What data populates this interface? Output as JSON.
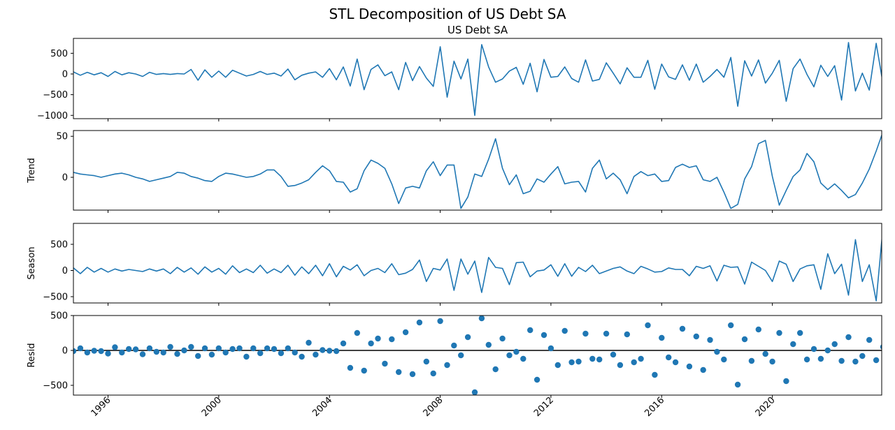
{
  "figure": {
    "suptitle": "STL Decomposition of US Debt SA"
  },
  "chart_data": [
    {
      "type": "line",
      "title": "US Debt SA",
      "ylabel": "",
      "xlabel": "",
      "xlim": [
        1994.75,
        2023.95
      ],
      "ylim": [
        -1080,
        860
      ],
      "yticks": [
        -1000,
        -500,
        0,
        500
      ],
      "color": "#1f77b4",
      "x_start": 1994.75,
      "x_step": 0.25,
      "values": [
        50,
        -30,
        40,
        -20,
        30,
        -60,
        60,
        -20,
        30,
        0,
        -60,
        40,
        -10,
        10,
        -10,
        10,
        0,
        110,
        -150,
        100,
        -80,
        70,
        -80,
        90,
        20,
        -50,
        -10,
        60,
        -10,
        20,
        -50,
        120,
        -140,
        -30,
        20,
        50,
        -80,
        130,
        -140,
        170,
        -290,
        360,
        -380,
        110,
        220,
        -40,
        50,
        -380,
        280,
        -160,
        180,
        -100,
        -300,
        660,
        -560,
        310,
        -120,
        360,
        -1000,
        710,
        170,
        -200,
        -120,
        70,
        160,
        -250,
        260,
        -430,
        350,
        -80,
        -60,
        170,
        -110,
        -200,
        340,
        -170,
        -130,
        270,
        20,
        -240,
        150,
        -80,
        -80,
        330,
        -370,
        240,
        -70,
        -130,
        220,
        -150,
        240,
        -200,
        -60,
        110,
        -80,
        400,
        -780,
        320,
        -50,
        340,
        -220,
        20,
        330,
        -660,
        130,
        360,
        -10,
        -310,
        210,
        -60,
        200,
        -630,
        760,
        -410,
        20,
        -390,
        740,
        -250
      ]
    },
    {
      "type": "line",
      "title": "",
      "ylabel": "Trend",
      "xlabel": "",
      "xlim": [
        1994.75,
        2023.95
      ],
      "ylim": [
        -40,
        57
      ],
      "yticks": [
        0,
        50
      ],
      "color": "#1f77b4",
      "x_start": 1994.75,
      "x_step": 0.25,
      "values": [
        6,
        4,
        3,
        2,
        0,
        2,
        4,
        5,
        3,
        0,
        -2,
        -5,
        -3,
        -1,
        1,
        6,
        5,
        1,
        -1,
        -4,
        -5,
        1,
        5,
        4,
        2,
        0,
        1,
        4,
        9,
        9,
        1,
        -11,
        -10,
        -7,
        -3,
        6,
        14,
        8,
        -5,
        -6,
        -18,
        -14,
        8,
        21,
        17,
        11,
        -8,
        -32,
        -13,
        -11,
        -13,
        8,
        19,
        2,
        15,
        15,
        -38,
        -24,
        4,
        1,
        22,
        47,
        11,
        -9,
        3,
        -20,
        -17,
        -2,
        -6,
        4,
        13,
        -8,
        -6,
        -5,
        -18,
        11,
        21,
        -2,
        5,
        -3,
        -20,
        1,
        7,
        2,
        4,
        -5,
        -4,
        12,
        16,
        12,
        14,
        -3,
        -5,
        0,
        -18,
        -38,
        -33,
        -2,
        13,
        41,
        45,
        1,
        -34,
        -16,
        1,
        9,
        29,
        19,
        -7,
        -15,
        -8,
        -16,
        -25,
        -21,
        -7,
        10,
        32,
        56
      ]
    },
    {
      "type": "line",
      "title": "",
      "ylabel": "Season",
      "xlabel": "",
      "xlim": [
        1994.75,
        2023.95
      ],
      "ylim": [
        -620,
        900
      ],
      "yticks": [
        -500,
        0,
        500
      ],
      "color": "#1f77b4",
      "x_start": 1994.75,
      "x_step": 0.25,
      "values": [
        50,
        -60,
        60,
        -30,
        40,
        -30,
        30,
        -10,
        20,
        0,
        -20,
        30,
        -10,
        30,
        -60,
        60,
        -30,
        50,
        -70,
        70,
        -30,
        40,
        -70,
        90,
        -40,
        30,
        -40,
        100,
        -50,
        30,
        -40,
        100,
        -90,
        70,
        -60,
        100,
        -100,
        130,
        -120,
        80,
        10,
        110,
        -100,
        0,
        40,
        -40,
        130,
        -80,
        -50,
        20,
        200,
        -210,
        40,
        10,
        220,
        -380,
        220,
        -70,
        180,
        -420,
        250,
        60,
        40,
        -270,
        150,
        160,
        -120,
        -10,
        10,
        110,
        -110,
        130,
        -110,
        60,
        -20,
        100,
        -60,
        -10,
        40,
        70,
        -10,
        -60,
        80,
        30,
        -30,
        -20,
        50,
        20,
        20,
        -100,
        80,
        40,
        90,
        -200,
        100,
        60,
        70,
        -260,
        160,
        80,
        0,
        -210,
        180,
        120,
        -210,
        30,
        90,
        110,
        -360,
        320,
        -60,
        120,
        -470,
        590,
        -210,
        110,
        -580,
        850,
        -390
      ]
    },
    {
      "type": "scatter",
      "title": "",
      "ylabel": "Resid",
      "xlabel": "",
      "xlim": [
        1994.75,
        2023.95
      ],
      "ylim": [
        -640,
        500
      ],
      "yticks": [
        -500,
        0,
        500
      ],
      "color": "#1f77b4",
      "zero_line": true,
      "x_start": 1994.75,
      "x_step": 0.25,
      "values": [
        -10,
        30,
        -30,
        -5,
        -10,
        -45,
        45,
        -30,
        20,
        15,
        -55,
        30,
        -20,
        -30,
        50,
        -50,
        0,
        50,
        -80,
        30,
        -60,
        30,
        -30,
        20,
        30,
        -90,
        30,
        -40,
        30,
        20,
        -40,
        30,
        -30,
        -90,
        110,
        -60,
        5,
        -5,
        -10,
        100,
        -250,
        250,
        -290,
        100,
        170,
        -190,
        160,
        -310,
        260,
        -340,
        400,
        -160,
        -330,
        420,
        -210,
        70,
        -70,
        190,
        -600,
        460,
        80,
        -270,
        170,
        -70,
        -20,
        -120,
        290,
        -420,
        220,
        30,
        -210,
        280,
        -170,
        -160,
        240,
        -120,
        -130,
        240,
        -60,
        -210,
        230,
        -170,
        -120,
        360,
        -350,
        180,
        -100,
        -170,
        310,
        -230,
        200,
        -280,
        150,
        -20,
        -130,
        360,
        -490,
        160,
        -150,
        300,
        -50,
        -160,
        250,
        -440,
        90,
        250,
        -130,
        20,
        -120,
        0,
        90,
        -150,
        190,
        -160,
        -80,
        150,
        -140,
        50
      ]
    }
  ],
  "xaxis": {
    "ticks": [
      {
        "value": 1996,
        "label": "1996"
      },
      {
        "value": 2000,
        "label": "2000"
      },
      {
        "value": 2004,
        "label": "2004"
      },
      {
        "value": 2008,
        "label": "2008"
      },
      {
        "value": 2012,
        "label": "2012"
      },
      {
        "value": 2016,
        "label": "2016"
      },
      {
        "value": 2020,
        "label": "2020"
      }
    ]
  }
}
